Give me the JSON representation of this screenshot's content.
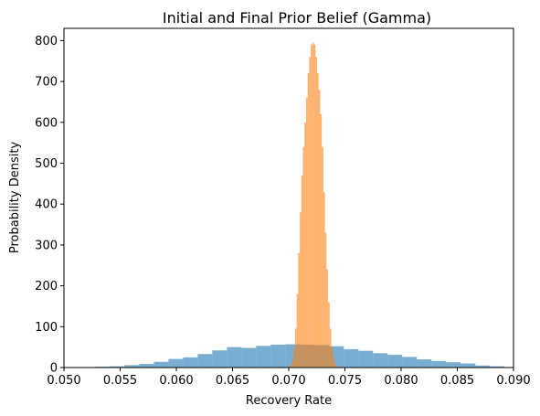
{
  "chart_data": {
    "type": "histogram",
    "title": "Initial and Final Prior Belief (Gamma)",
    "xlabel": "Recovery Rate",
    "ylabel": "Probability Density",
    "xlim": [
      0.05,
      0.09
    ],
    "ylim": [
      0,
      830
    ],
    "grid": false,
    "legend": "none",
    "x_ticks": [
      {
        "value": 0.05,
        "label": "0.050"
      },
      {
        "value": 0.055,
        "label": "0.055"
      },
      {
        "value": 0.06,
        "label": "0.060"
      },
      {
        "value": 0.065,
        "label": "0.065"
      },
      {
        "value": 0.07,
        "label": "0.070"
      },
      {
        "value": 0.075,
        "label": "0.075"
      },
      {
        "value": 0.08,
        "label": "0.080"
      },
      {
        "value": 0.085,
        "label": "0.085"
      },
      {
        "value": 0.09,
        "label": "0.090"
      }
    ],
    "y_ticks": [
      {
        "value": 0,
        "label": "0"
      },
      {
        "value": 100,
        "label": "100"
      },
      {
        "value": 200,
        "label": "200"
      },
      {
        "value": 300,
        "label": "300"
      },
      {
        "value": 400,
        "label": "400"
      },
      {
        "value": 500,
        "label": "500"
      },
      {
        "value": 600,
        "label": "600"
      },
      {
        "value": 700,
        "label": "700"
      },
      {
        "value": 800,
        "label": "800"
      }
    ],
    "series": [
      {
        "color": "#1f77b4",
        "opacity": 0.6,
        "bin_start": 0.045,
        "bin_width": 0.0013,
        "values": [
          0.5,
          1,
          1,
          1,
          1,
          1,
          2,
          3,
          6,
          9,
          14,
          21,
          25,
          33,
          42,
          50,
          48,
          53,
          56,
          57,
          56,
          55,
          52,
          45,
          41,
          35,
          31,
          26,
          20,
          16,
          13,
          10,
          5,
          3
        ]
      },
      {
        "color": "#ff7f0e",
        "opacity": 0.6,
        "bin_start": 0.07,
        "bin_width": 0.00014,
        "values": [
          2,
          8,
          18,
          45,
          95,
          180,
          280,
          380,
          470,
          540,
          600,
          660,
          720,
          760,
          790,
          795,
          790,
          760,
          720,
          680,
          620,
          540,
          430,
          330,
          240,
          160,
          95,
          50,
          25,
          10,
          4,
          2
        ]
      }
    ]
  }
}
